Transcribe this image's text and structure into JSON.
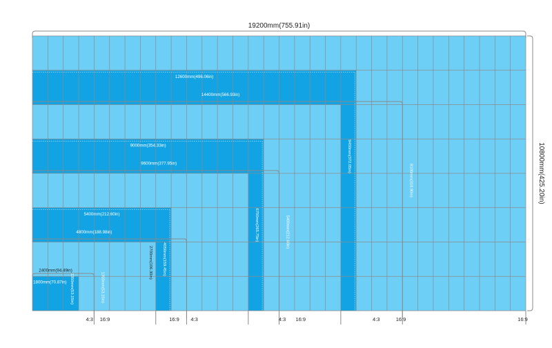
{
  "title": "LED video wall size diagram",
  "colors": {
    "panel_light": "#6ecff6",
    "panel_dark": "#12a3e5",
    "grid_line": "#8a8a8a",
    "bracket": "#888888",
    "text": "#222222",
    "text_on_dark": "#ffffff"
  },
  "wall": {
    "width_label": "19200mm(755.91in)",
    "height_label": "10800mm(425.20in)",
    "columns": 32,
    "rows": 8
  },
  "horizontal_dims": [
    {
      "id": "w12600",
      "label": "12600mm(496.06in)"
    },
    {
      "id": "w14400",
      "label": "14400mm(566.93in)"
    },
    {
      "id": "w9000",
      "label": "9000mm(354.33in)"
    },
    {
      "id": "w9600",
      "label": "9600mm(377.95in)"
    },
    {
      "id": "w5400",
      "label": "5400mm(212.60in)"
    },
    {
      "id": "w4800",
      "label": "4800mm(188.98in)"
    },
    {
      "id": "w2400",
      "label": "2400mm(94.49in)"
    },
    {
      "id": "w1800",
      "label": "1800mm(70.87in)"
    }
  ],
  "vertical_dims": [
    {
      "id": "h1350a",
      "label": "1350mm(53.15in)"
    },
    {
      "id": "h1350b",
      "label": "1350mm(53.15in)"
    },
    {
      "id": "h4050",
      "label": "4050mm(159.45in)"
    },
    {
      "id": "h2700",
      "label": "2700mm(106.30in)"
    },
    {
      "id": "h6750",
      "label": "6750mm(265.75in)"
    },
    {
      "id": "h5400",
      "label": "5400mm(212.60in)"
    },
    {
      "id": "h9450",
      "label": "9450mm(372.05in)"
    },
    {
      "id": "h8100",
      "label": "8100mm(318.90in)"
    }
  ],
  "ratio_labels": [
    "4:3",
    "16:9",
    "16:9",
    "4:3",
    "4:3",
    "16:9",
    "4:3",
    "16:9",
    "16:9"
  ]
}
